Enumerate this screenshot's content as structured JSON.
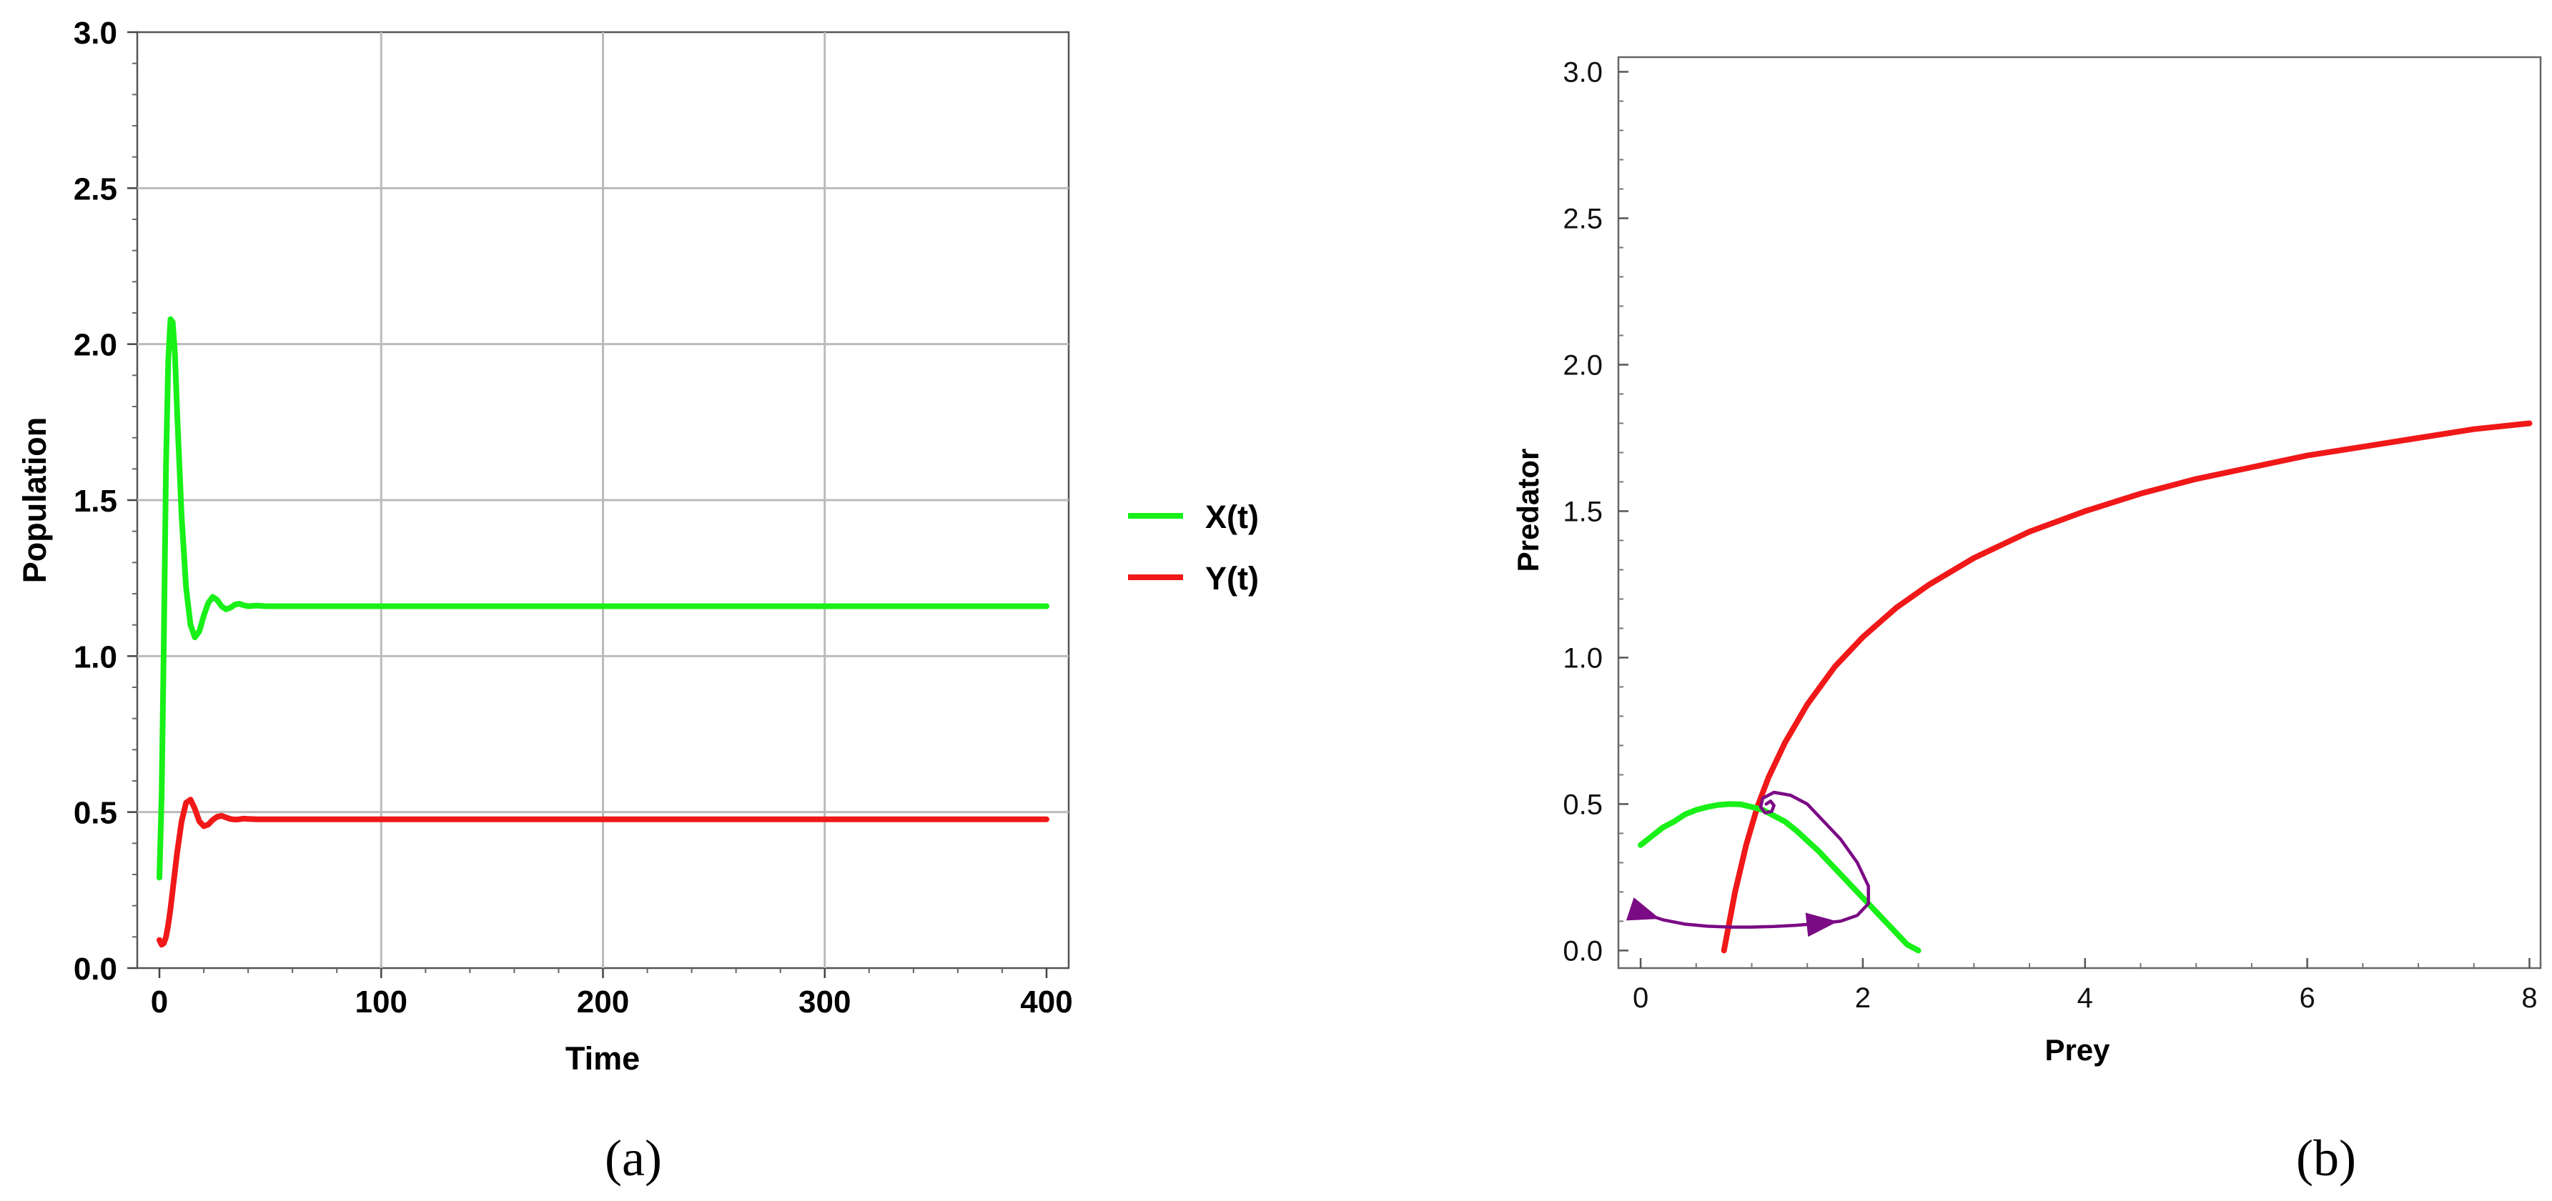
{
  "chart_data": [
    {
      "type": "line",
      "xlabel": "Time",
      "ylabel": "Population",
      "xlim": [
        0,
        400
      ],
      "ylim": [
        0,
        3.0
      ],
      "xticks": [
        "0",
        "100",
        "200",
        "300",
        "400"
      ],
      "yticks": [
        "0.0",
        "0.5",
        "1.0",
        "1.5",
        "2.0",
        "2.5",
        "3.0"
      ],
      "grid": true,
      "legend_position": "right",
      "series": [
        {
          "name": "X(t)",
          "color": "#18f018",
          "x": [
            0,
            1,
            2,
            3,
            4,
            5,
            6,
            7,
            8,
            10,
            12,
            14,
            16,
            18,
            20,
            22,
            24,
            26,
            28,
            30,
            32,
            34,
            36,
            38,
            40,
            44,
            48,
            55,
            100,
            200,
            300,
            400
          ],
          "y": [
            0.29,
            0.55,
            1.05,
            1.62,
            1.95,
            2.08,
            2.07,
            1.97,
            1.78,
            1.45,
            1.22,
            1.1,
            1.06,
            1.08,
            1.13,
            1.17,
            1.19,
            1.18,
            1.16,
            1.15,
            1.155,
            1.165,
            1.168,
            1.163,
            1.16,
            1.162,
            1.16,
            1.16,
            1.16,
            1.16,
            1.16,
            1.16
          ]
        },
        {
          "name": "Y(t)",
          "color": "#f01818",
          "x": [
            0,
            1,
            2,
            3,
            4,
            5,
            6,
            8,
            10,
            12,
            14,
            16,
            18,
            20,
            22,
            24,
            26,
            28,
            30,
            32,
            34,
            36,
            38,
            40,
            44,
            48,
            55,
            100,
            200,
            300,
            400
          ],
          "y": [
            0.09,
            0.075,
            0.08,
            0.1,
            0.14,
            0.19,
            0.25,
            0.37,
            0.47,
            0.53,
            0.54,
            0.51,
            0.47,
            0.455,
            0.46,
            0.475,
            0.485,
            0.488,
            0.483,
            0.478,
            0.476,
            0.477,
            0.479,
            0.478,
            0.477,
            0.477,
            0.477,
            0.477,
            0.477,
            0.477,
            0.477
          ]
        }
      ],
      "caption": "(a)"
    },
    {
      "type": "line",
      "xlabel": "Prey",
      "ylabel": "Predator",
      "xlim": [
        -0.2,
        8.1
      ],
      "ylim": [
        -0.06,
        3.05
      ],
      "xticks": [
        "0",
        "2",
        "4",
        "6",
        "8"
      ],
      "yticks": [
        "0.0",
        "0.5",
        "1.0",
        "1.5",
        "2.0",
        "2.5",
        "3.0"
      ],
      "grid": false,
      "series": [
        {
          "color": "#f01818",
          "x": [
            0.75,
            0.85,
            0.95,
            1.05,
            1.15,
            1.3,
            1.5,
            1.75,
            2.0,
            2.3,
            2.6,
            3.0,
            3.5,
            4.0,
            4.5,
            5.0,
            5.5,
            6.0,
            6.5,
            7.0,
            7.5,
            8.0
          ],
          "y": [
            0.0,
            0.2,
            0.36,
            0.49,
            0.59,
            0.71,
            0.84,
            0.97,
            1.07,
            1.17,
            1.25,
            1.34,
            1.43,
            1.5,
            1.56,
            1.61,
            1.65,
            1.69,
            1.72,
            1.75,
            1.78,
            1.8
          ]
        },
        {
          "color": "#18f018",
          "x": [
            0.0,
            0.1,
            0.2,
            0.3,
            0.4,
            0.5,
            0.6,
            0.7,
            0.8,
            0.9,
            1.0,
            1.1,
            1.2,
            1.3,
            1.4,
            1.5,
            1.6,
            1.7,
            1.8,
            1.9,
            2.0,
            2.1,
            2.2,
            2.3,
            2.4,
            2.5
          ],
          "y": [
            0.36,
            0.39,
            0.42,
            0.44,
            0.465,
            0.48,
            0.49,
            0.497,
            0.5,
            0.499,
            0.49,
            0.48,
            0.46,
            0.44,
            0.41,
            0.375,
            0.34,
            0.3,
            0.26,
            0.22,
            0.18,
            0.14,
            0.1,
            0.06,
            0.02,
            0.0
          ]
        },
        {
          "color": "#7b0a85",
          "x": [
            0.0,
            0.2,
            0.4,
            0.6,
            0.8,
            1.0,
            1.2,
            1.4,
            1.6,
            1.8,
            1.95,
            2.05,
            2.05,
            1.95,
            1.8,
            1.65,
            1.5,
            1.35,
            1.2,
            1.1,
            1.08,
            1.12,
            1.18,
            1.2,
            1.17,
            1.13
          ],
          "y": [
            0.13,
            0.105,
            0.09,
            0.083,
            0.08,
            0.08,
            0.082,
            0.086,
            0.092,
            0.1,
            0.12,
            0.16,
            0.22,
            0.3,
            0.38,
            0.44,
            0.5,
            0.53,
            0.54,
            0.52,
            0.49,
            0.47,
            0.475,
            0.495,
            0.51,
            0.5
          ]
        }
      ],
      "caption": "(b)"
    }
  ]
}
